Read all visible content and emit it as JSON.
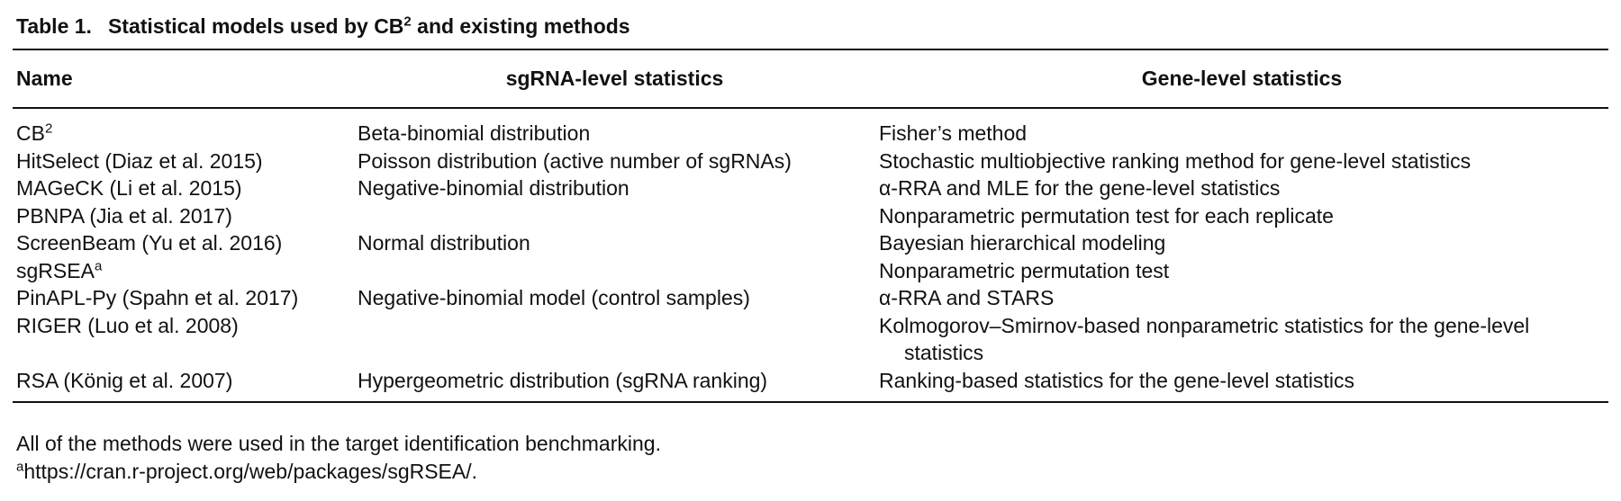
{
  "title": {
    "label": "Table 1.",
    "text": "Statistical models used by CB",
    "sup": "2",
    "rest": " and existing methods"
  },
  "table": {
    "headers": [
      "Name",
      "sgRNA-level statistics",
      "Gene-level statistics"
    ],
    "rows": [
      {
        "name": "CB",
        "name_sup": "2",
        "sgrna": "Beta-binomial distribution",
        "gene": "Fisher’s method"
      },
      {
        "name": "HitSelect (Diaz et al. 2015)",
        "sgrna": "Poisson distribution (active number of sgRNAs)",
        "gene": "Stochastic multiobjective ranking method for gene-level statistics"
      },
      {
        "name": "MAGeCK (Li et al. 2015)",
        "sgrna": "Negative-binomial distribution",
        "gene": "α-RRA and MLE for the gene-level statistics"
      },
      {
        "name": "PBNPA (Jia et al. 2017)",
        "gene": "Nonparametric permutation test for each replicate"
      },
      {
        "name": "ScreenBeam (Yu et al. 2016)",
        "sgrna": "Normal distribution",
        "gene": "Bayesian hierarchical modeling"
      },
      {
        "name": "sgRSEA",
        "name_sup": "a",
        "gene": "Nonparametric permutation test"
      },
      {
        "name": "PinAPL-Py (Spahn et al. 2017)",
        "sgrna": "Negative-binomial model (control samples)",
        "gene": "α-RRA and STARS"
      },
      {
        "name": "RIGER (Luo et al. 2008)",
        "gene": "Kolmogorov–Smirnov-based nonparametric statistics for the gene-level statistics"
      },
      {
        "name": "RSA (König et al. 2007)",
        "sgrna": "Hypergeometric distribution (sgRNA ranking)",
        "gene": "Ranking-based statistics for the gene-level statistics"
      }
    ]
  },
  "notes": {
    "text": "All of the methods were used in the target identification benchmarking.",
    "mark": "a",
    "url": "https://cran.r-project.org/web/packages/sgRSEA/."
  }
}
